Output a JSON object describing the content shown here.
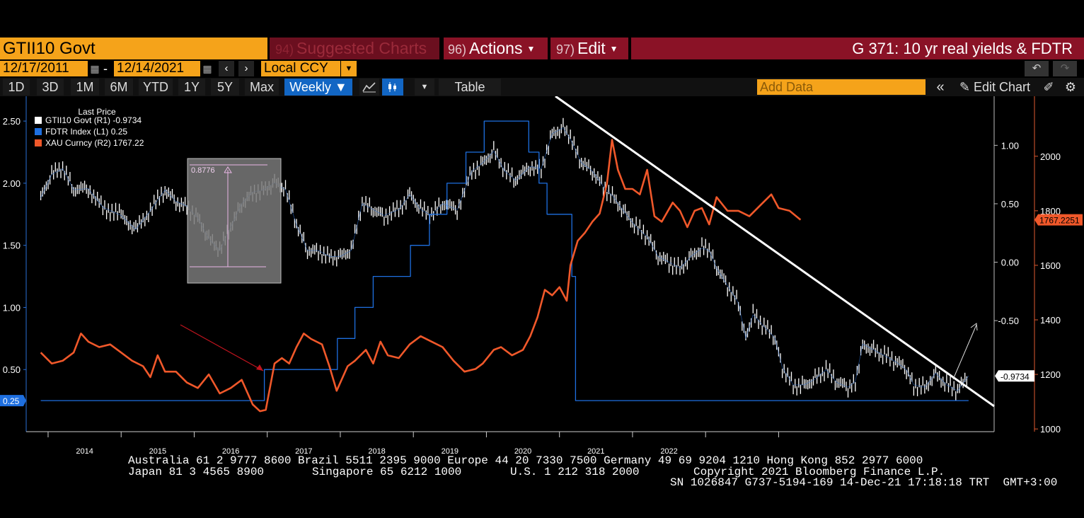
{
  "header": {
    "security": "GTII10 Govt",
    "suggested": {
      "num": "94)",
      "label": "Suggested Charts"
    },
    "actions": {
      "num": "96)",
      "label": "Actions"
    },
    "edit": {
      "num": "97)",
      "label": "Edit"
    },
    "title": "G 371: 10 yr real yields & FDTR"
  },
  "dates": {
    "start": "12/17/2011",
    "sep": "-",
    "end": "12/14/2021",
    "currency": "Local CCY"
  },
  "toolbar": {
    "periods": [
      "1D",
      "3D",
      "1M",
      "6M",
      "YTD",
      "1Y",
      "5Y",
      "Max"
    ],
    "frequency": "Weekly ▼",
    "table": "Table",
    "add_data_placeholder": "Add Data",
    "edit_chart": "Edit Chart"
  },
  "legend": {
    "title": "Last Price",
    "items": [
      {
        "label": "GTII10 Govt  (R1) -0.9734",
        "color": "#ffffff"
      },
      {
        "label": "FDTR Index  (L1) 0.25",
        "color": "#1e6fe0"
      },
      {
        "label": "XAU Curncy  (R2)  1767.22",
        "color": "#f0582a"
      }
    ]
  },
  "annotation_box_label": "0.8776",
  "chart_data": {
    "type": "line",
    "x_ticks": [
      "2014",
      "2015",
      "2016",
      "2017",
      "2018",
      "2019",
      "2020",
      "2021",
      "2022"
    ],
    "axes": {
      "left": {
        "ticks": [
          "2.50",
          "2.00",
          "1.50",
          "1.00",
          "0.50"
        ],
        "range": [
          0.0,
          2.7
        ]
      },
      "right1": {
        "ticks": [
          "1.00",
          "0.50",
          "0.00",
          "-0.50"
        ],
        "range": [
          -1.45,
          1.42
        ]
      },
      "right2": {
        "ticks": [
          "2000",
          "1800",
          "1600",
          "1400",
          "1200",
          "1000"
        ],
        "range": [
          990,
          2220
        ]
      }
    },
    "series": [
      {
        "name": "GTII10 Govt",
        "axis": "right1",
        "color": "#ffffff",
        "points": [
          [
            2012.9,
            0.55
          ],
          [
            2013.05,
            0.75
          ],
          [
            2013.2,
            0.8
          ],
          [
            2013.35,
            0.62
          ],
          [
            2013.55,
            0.63
          ],
          [
            2013.75,
            0.47
          ],
          [
            2014.0,
            0.4
          ],
          [
            2014.2,
            0.28
          ],
          [
            2014.4,
            0.44
          ],
          [
            2014.6,
            0.62
          ],
          [
            2014.75,
            0.52
          ],
          [
            2014.9,
            0.48
          ],
          [
            2015.05,
            0.38
          ],
          [
            2015.2,
            0.2
          ],
          [
            2015.35,
            0.1
          ],
          [
            2015.5,
            0.3
          ],
          [
            2015.65,
            0.5
          ],
          [
            2015.8,
            0.6
          ],
          [
            2015.95,
            0.62
          ],
          [
            2016.1,
            0.68
          ],
          [
            2016.25,
            0.62
          ],
          [
            2016.4,
            0.32
          ],
          [
            2016.55,
            0.1
          ],
          [
            2016.7,
            0.1
          ],
          [
            2016.85,
            0.05
          ],
          [
            2017.0,
            0.05
          ],
          [
            2017.15,
            0.1
          ],
          [
            2017.3,
            0.5
          ],
          [
            2017.45,
            0.45
          ],
          [
            2017.6,
            0.4
          ],
          [
            2017.8,
            0.45
          ],
          [
            2017.95,
            0.58
          ],
          [
            2018.1,
            0.45
          ],
          [
            2018.25,
            0.4
          ],
          [
            2018.4,
            0.5
          ],
          [
            2018.6,
            0.45
          ],
          [
            2018.8,
            0.78
          ],
          [
            2018.95,
            0.85
          ],
          [
            2019.1,
            0.95
          ],
          [
            2019.25,
            0.78
          ],
          [
            2019.4,
            0.7
          ],
          [
            2019.6,
            0.82
          ],
          [
            2019.75,
            0.8
          ],
          [
            2019.9,
            1.1
          ],
          [
            2020.05,
            1.15
          ],
          [
            2020.15,
            1.05
          ],
          [
            2020.3,
            0.85
          ],
          [
            2020.45,
            0.78
          ],
          [
            2020.6,
            0.65
          ],
          [
            2020.75,
            0.55
          ],
          [
            2020.9,
            0.42
          ],
          [
            2021.05,
            0.3
          ],
          [
            2021.2,
            0.22
          ],
          [
            2021.35,
            0.05
          ],
          [
            2021.5,
            0.0
          ],
          [
            2021.65,
            -0.05
          ],
          [
            2021.8,
            0.05
          ],
          [
            2021.95,
            0.12
          ],
          [
            2022.05,
            0.1
          ],
          [
            2022.15,
            -0.05
          ],
          [
            2022.3,
            -0.2
          ],
          [
            2022.45,
            -0.35
          ],
          [
            2022.55,
            -0.65
          ],
          [
            2022.65,
            -0.45
          ],
          [
            2022.8,
            -0.55
          ],
          [
            2022.95,
            -0.65
          ],
          [
            2023.05,
            -0.9
          ],
          [
            2023.2,
            -1.05
          ],
          [
            2023.35,
            -1.05
          ],
          [
            2023.5,
            -1.0
          ],
          [
            2023.65,
            -0.92
          ],
          [
            2023.8,
            -1.03
          ],
          [
            2023.95,
            -1.07
          ],
          [
            2024.05,
            -1.02
          ],
          [
            2024.15,
            -0.7
          ],
          [
            2024.3,
            -0.75
          ],
          [
            2024.45,
            -0.8
          ],
          [
            2024.6,
            -0.85
          ],
          [
            2024.75,
            -0.92
          ],
          [
            2024.85,
            -1.05
          ],
          [
            2025.0,
            -1.07
          ],
          [
            2025.15,
            -0.95
          ],
          [
            2025.3,
            -1.05
          ],
          [
            2025.45,
            -1.1
          ],
          [
            2025.6,
            -0.9734
          ]
        ]
      },
      {
        "name": "FDTR Index",
        "axis": "left",
        "color": "#1e6fe0",
        "points": [
          [
            2012.9,
            0.25
          ],
          [
            2015.96,
            0.25
          ],
          [
            2015.96,
            0.5
          ],
          [
            2016.96,
            0.5
          ],
          [
            2016.96,
            0.75
          ],
          [
            2017.2,
            0.75
          ],
          [
            2017.2,
            1.0
          ],
          [
            2017.45,
            1.0
          ],
          [
            2017.45,
            1.25
          ],
          [
            2017.96,
            1.25
          ],
          [
            2017.96,
            1.5
          ],
          [
            2018.22,
            1.5
          ],
          [
            2018.22,
            1.75
          ],
          [
            2018.46,
            1.75
          ],
          [
            2018.46,
            2.0
          ],
          [
            2018.72,
            2.0
          ],
          [
            2018.72,
            2.25
          ],
          [
            2018.97,
            2.25
          ],
          [
            2018.97,
            2.5
          ],
          [
            2019.58,
            2.5
          ],
          [
            2019.58,
            2.25
          ],
          [
            2019.72,
            2.25
          ],
          [
            2019.72,
            2.0
          ],
          [
            2019.83,
            2.0
          ],
          [
            2019.83,
            1.75
          ],
          [
            2020.17,
            1.75
          ],
          [
            2020.17,
            1.25
          ],
          [
            2020.22,
            1.25
          ],
          [
            2020.22,
            0.25
          ],
          [
            2025.6,
            0.25
          ]
        ]
      },
      {
        "name": "XAU Curncy",
        "axis": "right2",
        "color": "#f0582a",
        "points": [
          [
            2012.9,
            1280
          ],
          [
            2013.05,
            1240
          ],
          [
            2013.2,
            1250
          ],
          [
            2013.35,
            1280
          ],
          [
            2013.45,
            1350
          ],
          [
            2013.55,
            1320
          ],
          [
            2013.7,
            1300
          ],
          [
            2013.85,
            1310
          ],
          [
            2014.0,
            1280
          ],
          [
            2014.15,
            1250
          ],
          [
            2014.3,
            1230
          ],
          [
            2014.4,
            1190
          ],
          [
            2014.5,
            1270
          ],
          [
            2014.6,
            1210
          ],
          [
            2014.75,
            1210
          ],
          [
            2014.9,
            1170
          ],
          [
            2015.05,
            1150
          ],
          [
            2015.2,
            1200
          ],
          [
            2015.35,
            1130
          ],
          [
            2015.5,
            1150
          ],
          [
            2015.65,
            1180
          ],
          [
            2015.8,
            1090
          ],
          [
            2015.9,
            1065
          ],
          [
            2015.98,
            1070
          ],
          [
            2016.1,
            1240
          ],
          [
            2016.2,
            1260
          ],
          [
            2016.3,
            1240
          ],
          [
            2016.4,
            1300
          ],
          [
            2016.5,
            1350
          ],
          [
            2016.6,
            1330
          ],
          [
            2016.75,
            1310
          ],
          [
            2016.85,
            1230
          ],
          [
            2016.95,
            1140
          ],
          [
            2017.1,
            1230
          ],
          [
            2017.2,
            1250
          ],
          [
            2017.35,
            1290
          ],
          [
            2017.45,
            1240
          ],
          [
            2017.55,
            1320
          ],
          [
            2017.65,
            1270
          ],
          [
            2017.8,
            1260
          ],
          [
            2017.95,
            1310
          ],
          [
            2018.1,
            1340
          ],
          [
            2018.25,
            1320
          ],
          [
            2018.4,
            1300
          ],
          [
            2018.55,
            1250
          ],
          [
            2018.7,
            1210
          ],
          [
            2018.85,
            1220
          ],
          [
            2018.95,
            1240
          ],
          [
            2019.1,
            1290
          ],
          [
            2019.2,
            1300
          ],
          [
            2019.35,
            1270
          ],
          [
            2019.5,
            1290
          ],
          [
            2019.6,
            1340
          ],
          [
            2019.7,
            1410
          ],
          [
            2019.8,
            1510
          ],
          [
            2019.9,
            1490
          ],
          [
            2020.0,
            1520
          ],
          [
            2020.1,
            1470
          ],
          [
            2020.15,
            1600
          ],
          [
            2020.25,
            1690
          ],
          [
            2020.35,
            1720
          ],
          [
            2020.45,
            1760
          ],
          [
            2020.55,
            1790
          ],
          [
            2020.65,
            1900
          ],
          [
            2020.72,
            2060
          ],
          [
            2020.8,
            1950
          ],
          [
            2020.9,
            1880
          ],
          [
            2021.0,
            1880
          ],
          [
            2021.1,
            1860
          ],
          [
            2021.2,
            1950
          ],
          [
            2021.3,
            1780
          ],
          [
            2021.4,
            1760
          ],
          [
            2021.55,
            1830
          ],
          [
            2021.65,
            1800
          ],
          [
            2021.75,
            1740
          ],
          [
            2021.85,
            1800
          ],
          [
            2021.95,
            1810
          ],
          [
            2022.05,
            1750
          ],
          [
            2022.15,
            1850
          ],
          [
            2022.3,
            1800
          ],
          [
            2022.45,
            1800
          ],
          [
            2022.6,
            1780
          ],
          [
            2022.75,
            1820
          ],
          [
            2022.9,
            1860
          ],
          [
            2023.0,
            1810
          ],
          [
            2023.15,
            1800
          ],
          [
            2023.3,
            1767
          ]
        ]
      }
    ]
  },
  "footer": {
    "line1": "Australia 61 2 9777 8600 Brazil 5511 2395 9000 Europe 44 20 7330 7500 Germany 49 69 9204 1210 Hong Kong 852 2977 6000",
    "line2a": "Japan 81 3 4565 8900",
    "line2b": "Singapore 65 6212 1000",
    "line2c": "U.S. 1 212 318 2000",
    "line2d": "Copyright 2021 Bloomberg Finance L.P.",
    "line3": "SN 1026847 G737-5194-169 14-Dec-21 17:18:18 TRT  GMT+3:00"
  }
}
